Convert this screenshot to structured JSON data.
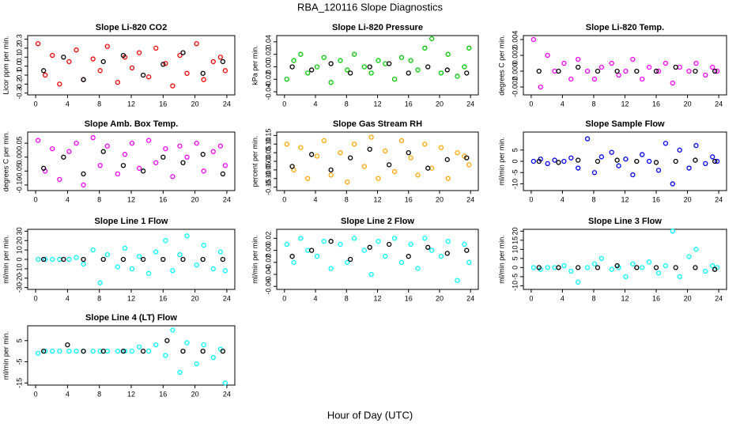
{
  "title": "RBA_120116  Slope Diagnostics",
  "xlabel": "Hour of Day (UTC)",
  "chart_data": [
    {
      "type": "scatter",
      "title": "Slope Li-820 CO2",
      "ylabel": "Licor ppm per min.",
      "xlim": [
        -1,
        25
      ],
      "xticks": [
        0,
        4,
        8,
        12,
        16,
        20,
        24
      ],
      "ylim": [
        -0.32,
        0.34
      ],
      "yticks": [
        -0.3,
        -0.2,
        -0.1,
        {
          "value": 0,
          "label": "0.0"
        },
        0.1,
        0.2,
        0.3
      ],
      "series": [
        {
          "color": "#ff0000",
          "x": [
            0.3,
            1.2,
            2.1,
            3.0,
            4.2,
            5.1,
            6.0,
            7.2,
            8.1,
            9.0,
            10.3,
            11.2,
            12.1,
            13.0,
            14.2,
            15.1,
            16.3,
            17.2,
            18.1,
            19.0,
            20.2,
            21.1,
            22.3,
            23.2,
            23.8
          ],
          "values": [
            0.25,
            -0.1,
            0.12,
            -0.2,
            0.05,
            0.18,
            -0.15,
            0.08,
            -0.05,
            0.22,
            -0.18,
            0.1,
            -0.02,
            0.15,
            -0.12,
            0.2,
            0.03,
            -0.22,
            0.12,
            -0.08,
            0.25,
            -0.15,
            0.05,
            0.1,
            -0.05
          ]
        },
        {
          "color": "#000000",
          "x": [
            1,
            3.5,
            6,
            8.5,
            11,
            13.5,
            16,
            18.5,
            21,
            23.5
          ],
          "values": [
            -0.05,
            0.1,
            -0.15,
            0.05,
            0.12,
            -0.1,
            0.02,
            0.15,
            -0.08,
            0.05
          ]
        }
      ]
    },
    {
      "type": "scatter",
      "title": "Slope Li-820 Pressure",
      "ylabel": "kPa per min.",
      "xlim": [
        -1,
        25
      ],
      "xticks": [
        0,
        4,
        8,
        12,
        16,
        20,
        24
      ],
      "ylim": [
        -0.045,
        0.05
      ],
      "yticks": [
        -0.04,
        -0.02,
        {
          "value": 0,
          "label": "0.00"
        },
        0.02,
        0.04
      ],
      "series": [
        {
          "color": "#00cc00",
          "x": [
            0.3,
            1.2,
            2.1,
            3.0,
            4.2,
            5.1,
            6.0,
            7.2,
            8.1,
            9.0,
            10.3,
            11.2,
            12.1,
            13.0,
            14.2,
            15.1,
            16.3,
            17.2,
            18.1,
            19.0,
            20.2,
            21.1,
            22.3,
            23.2,
            23.8
          ],
          "values": [
            -0.02,
            0.01,
            0.02,
            -0.01,
            0.0,
            0.015,
            -0.025,
            0.01,
            -0.005,
            0.02,
            0.0,
            -0.01,
            0.01,
            0.005,
            -0.02,
            0.015,
            0.01,
            -0.005,
            0.03,
            0.045,
            -0.01,
            0.02,
            -0.015,
            0.0,
            0.03
          ]
        },
        {
          "color": "#000000",
          "x": [
            1,
            3.5,
            6,
            8.5,
            11,
            13.5,
            16,
            18.5,
            21,
            23.5
          ],
          "values": [
            0.0,
            -0.005,
            0.005,
            -0.01,
            0.0,
            0.005,
            -0.01,
            0.0,
            -0.005,
            -0.01
          ]
        }
      ]
    },
    {
      "type": "scatter",
      "title": "Slope Li-820 Temp.",
      "ylabel": "degrees C per min.",
      "xlim": [
        -1,
        25
      ],
      "xticks": [
        0,
        4,
        8,
        12,
        16,
        20,
        24
      ],
      "ylim": [
        -0.003,
        0.0045
      ],
      "yticks": [
        -0.002,
        {
          "value": 0,
          "label": "0.000"
        },
        0.002,
        0.004
      ],
      "series": [
        {
          "color": "#ff00ff",
          "x": [
            0.3,
            1.2,
            2.1,
            3.0,
            4.2,
            5.1,
            6.0,
            7.2,
            8.1,
            9.0,
            10.3,
            11.2,
            12.1,
            13.0,
            14.2,
            15.1,
            16.3,
            17.2,
            18.1,
            19.0,
            20.2,
            21.1,
            22.3,
            23.2,
            23.8
          ],
          "values": [
            0.004,
            -0.002,
            0.002,
            0.0,
            0.001,
            -0.001,
            0.0015,
            0.0,
            -0.001,
            0.0005,
            0.001,
            -0.0005,
            0.0,
            0.0015,
            -0.001,
            0.0005,
            0.0,
            0.001,
            -0.0015,
            0.0005,
            0.0,
            0.001,
            -0.0005,
            0.0005,
            0.0
          ]
        },
        {
          "color": "#000000",
          "x": [
            1,
            3.5,
            6,
            8.5,
            11,
            13.5,
            16,
            18.5,
            21,
            23.5
          ],
          "values": [
            0,
            0,
            0.0005,
            0,
            0,
            0,
            0,
            0.0005,
            0,
            0
          ]
        }
      ]
    },
    {
      "type": "scatter",
      "title": "Slope Amb. Box Temp.",
      "ylabel": "degrees C per min.",
      "xlim": [
        -1,
        25
      ],
      "xticks": [
        0,
        4,
        8,
        12,
        16,
        20,
        24
      ],
      "ylim": [
        -0.12,
        0.09
      ],
      "yticks": [
        {
          "value": -0.1,
          "label": "-0.10"
        },
        -0.05,
        {
          "value": 0,
          "label": "0.00"
        },
        0.05
      ],
      "series": [
        {
          "color": "#ff00ff",
          "x": [
            0.3,
            1.2,
            2.1,
            3.0,
            4.2,
            5.1,
            6.0,
            7.2,
            8.1,
            9.0,
            10.3,
            11.2,
            12.1,
            13.0,
            14.2,
            15.1,
            16.3,
            17.2,
            18.1,
            19.0,
            20.2,
            21.1,
            22.3,
            23.2,
            23.8
          ],
          "values": [
            0.06,
            -0.05,
            0.03,
            -0.08,
            0.02,
            0.05,
            -0.1,
            0.07,
            -0.03,
            0.04,
            -0.06,
            0.01,
            0.05,
            -0.04,
            0.06,
            -0.02,
            0.03,
            -0.07,
            0.04,
            0.0,
            0.05,
            -0.05,
            0.02,
            0.04,
            -0.03
          ]
        },
        {
          "color": "#000000",
          "x": [
            1,
            3.5,
            6,
            8.5,
            11,
            13.5,
            16,
            18.5,
            21,
            23.5
          ],
          "values": [
            -0.04,
            0.0,
            -0.06,
            0.02,
            -0.03,
            -0.05,
            0.0,
            -0.02,
            0.01,
            -0.06
          ]
        }
      ]
    },
    {
      "type": "scatter",
      "title": "Slope Gas Stream RH",
      "ylabel": "percent per min.",
      "xlim": [
        -1,
        25
      ],
      "xticks": [
        0,
        4,
        8,
        12,
        16,
        20,
        24
      ],
      "ylim": [
        -0.17,
        0.17
      ],
      "yticks": [
        -0.15,
        {
          "value": -0.1,
          "label": "-0.10"
        },
        -0.05,
        {
          "value": 0,
          "label": "0.00"
        },
        0.05,
        {
          "value": 0.1,
          "label": "0.10"
        },
        0.15
      ],
      "series": [
        {
          "color": "#ffa500",
          "x": [
            0.3,
            1.2,
            2.1,
            3.0,
            4.2,
            5.1,
            6.0,
            7.2,
            8.1,
            9.0,
            10.3,
            11.2,
            12.1,
            13.0,
            14.2,
            15.1,
            16.3,
            17.2,
            18.1,
            19.0,
            20.2,
            21.1,
            22.3,
            23.2,
            23.8
          ],
          "values": [
            0.1,
            -0.05,
            0.08,
            -0.1,
            0.03,
            0.12,
            -0.08,
            0.05,
            -0.12,
            0.1,
            -0.03,
            0.14,
            -0.1,
            0.06,
            -0.06,
            0.12,
            0.02,
            -0.08,
            0.1,
            -0.04,
            0.08,
            -0.1,
            0.05,
            0.03,
            -0.02
          ]
        },
        {
          "color": "#000000",
          "x": [
            1,
            3.5,
            6,
            8.5,
            11,
            13.5,
            16,
            18.5,
            21,
            23.5
          ],
          "values": [
            -0.03,
            0.04,
            -0.05,
            0.02,
            0.07,
            -0.02,
            0.05,
            -0.04,
            0.01,
            0.02
          ]
        }
      ]
    },
    {
      "type": "scatter",
      "title": "Slope Sample Flow",
      "ylabel": "ml/min per min.",
      "xlim": [
        -1,
        25
      ],
      "xticks": [
        0,
        4,
        8,
        12,
        16,
        20,
        24
      ],
      "ylim": [
        -13,
        13
      ],
      "yticks": [
        -10,
        -5,
        0,
        5
      ],
      "series": [
        {
          "color": "#0000ff",
          "x": [
            0.3,
            1.2,
            2.1,
            3.0,
            4.2,
            5.1,
            6.0,
            7.2,
            8.1,
            9.0,
            10.3,
            11.2,
            12.1,
            13.0,
            14.2,
            15.1,
            16.3,
            17.2,
            18.1,
            19.0,
            20.2,
            21.1,
            22.3,
            23.2,
            23.8
          ],
          "values": [
            0,
            1,
            -1,
            0.5,
            0,
            1.5,
            -3,
            10,
            -5,
            2,
            4,
            -2,
            1,
            -6,
            3,
            0,
            -4,
            8,
            -10,
            5,
            -3,
            7,
            -1,
            2,
            0
          ]
        },
        {
          "color": "#000000",
          "x": [
            1,
            3.5,
            6,
            8.5,
            11,
            13.5,
            16,
            18.5,
            21,
            23.5
          ],
          "values": [
            0,
            -0.5,
            0.5,
            0,
            0.5,
            0,
            -0.5,
            0,
            0.5,
            0
          ]
        }
      ]
    },
    {
      "type": "scatter",
      "title": "Slope Line 1 Flow",
      "ylabel": "ml/min per min.",
      "xlim": [
        -1,
        25
      ],
      "xticks": [
        0,
        4,
        8,
        12,
        16,
        20,
        24
      ],
      "ylim": [
        -32,
        32
      ],
      "yticks": [
        -30,
        -20,
        -10,
        0,
        10,
        20,
        30
      ],
      "series": [
        {
          "color": "#00ffff",
          "x": [
            0.3,
            1.2,
            2.1,
            3.0,
            4.2,
            5.1,
            6.0,
            7.2,
            8.1,
            9.0,
            10.3,
            11.2,
            12.1,
            13.0,
            14.2,
            15.1,
            16.3,
            17.2,
            18.1,
            19.0,
            20.2,
            21.1,
            22.3,
            23.2,
            23.8
          ],
          "values": [
            0,
            0,
            0,
            0,
            0,
            2,
            -5,
            10,
            -25,
            5,
            -8,
            12,
            -10,
            3,
            -15,
            8,
            20,
            -12,
            5,
            25,
            -6,
            15,
            -10,
            8,
            -12
          ]
        },
        {
          "color": "#000000",
          "x": [
            1,
            3.5,
            6,
            8.5,
            11,
            13.5,
            16,
            18.5,
            21,
            23.5
          ],
          "values": [
            0,
            0,
            0,
            0,
            0,
            0,
            0,
            0,
            0,
            0
          ]
        }
      ]
    },
    {
      "type": "scatter",
      "title": "Slope Line 2 Flow",
      "ylabel": "ml/min per min.",
      "xlim": [
        -1,
        25
      ],
      "xticks": [
        0,
        4,
        8,
        12,
        16,
        20,
        24
      ],
      "ylim": [
        -0.065,
        0.035
      ],
      "yticks": [
        -0.06,
        -0.04,
        -0.02,
        {
          "value": 0,
          "label": "0.00"
        },
        0.02
      ],
      "series": [
        {
          "color": "#00ffff",
          "x": [
            0.3,
            1.2,
            2.1,
            3.0,
            4.2,
            5.1,
            6.0,
            7.2,
            8.1,
            9.0,
            10.3,
            11.2,
            12.1,
            13.0,
            14.2,
            15.1,
            16.3,
            17.2,
            18.1,
            19.0,
            20.2,
            21.1,
            22.3,
            23.2,
            23.8
          ],
          "values": [
            0.01,
            -0.02,
            0.02,
            0.0,
            -0.01,
            0.015,
            -0.03,
            0.01,
            -0.02,
            0.02,
            0.0,
            -0.04,
            0.015,
            -0.01,
            0.02,
            -0.02,
            0.01,
            -0.03,
            0.02,
            0.0,
            -0.01,
            0.015,
            -0.05,
            0.01,
            -0.02
          ]
        },
        {
          "color": "#000000",
          "x": [
            1,
            3.5,
            6,
            8.5,
            11,
            13.5,
            16,
            18.5,
            21,
            23.5
          ],
          "values": [
            -0.01,
            0.0,
            0.015,
            -0.015,
            0.005,
            0.01,
            -0.01,
            0.005,
            -0.005,
            0.0
          ]
        }
      ]
    },
    {
      "type": "scatter",
      "title": "Slope Line 3 Flow",
      "ylabel": "ml/min per min.",
      "xlim": [
        -1,
        25
      ],
      "xticks": [
        0,
        4,
        8,
        12,
        16,
        20,
        24
      ],
      "ylim": [
        -12,
        21
      ],
      "yticks": [
        -10,
        -5,
        0,
        5,
        10,
        15,
        20
      ],
      "series": [
        {
          "color": "#00ffff",
          "x": [
            0.3,
            1.2,
            2.1,
            3.0,
            4.2,
            5.1,
            6.0,
            7.2,
            8.1,
            9.0,
            10.3,
            11.2,
            12.1,
            13.0,
            14.2,
            15.1,
            16.3,
            17.2,
            18.1,
            19.0,
            20.2,
            21.1,
            22.3,
            23.2,
            23.8
          ],
          "values": [
            0,
            -1,
            0,
            0,
            1,
            -2,
            -8,
            0,
            2,
            5,
            -1,
            0,
            -5,
            2,
            0,
            3,
            -3,
            1,
            20,
            -5,
            6,
            10,
            -2,
            1,
            0
          ]
        },
        {
          "color": "#000000",
          "x": [
            1,
            3.5,
            6,
            8.5,
            11,
            13.5,
            16,
            18.5,
            21,
            23.5
          ],
          "values": [
            0,
            0,
            0,
            0,
            1,
            0,
            0,
            0,
            0,
            -1
          ]
        }
      ]
    },
    {
      "type": "scatter",
      "title": "Slope Line 4 (LT) Flow",
      "ylabel": "ml/min per min.",
      "xlim": [
        -1,
        25
      ],
      "xticks": [
        0,
        4,
        8,
        12,
        16,
        20,
        24
      ],
      "ylim": [
        -16,
        12
      ],
      "yticks": [
        -15,
        -5,
        5
      ],
      "series": [
        {
          "color": "#00ffff",
          "x": [
            0.3,
            1.2,
            2.1,
            3.0,
            4.2,
            5.1,
            6.0,
            7.2,
            8.1,
            9.0,
            10.3,
            11.2,
            12.1,
            13.0,
            14.2,
            15.1,
            16.3,
            17.2,
            18.1,
            19.0,
            20.2,
            21.1,
            22.3,
            23.2,
            23.8
          ],
          "values": [
            -1,
            0,
            0,
            0,
            0,
            0,
            0,
            0,
            0,
            0,
            0,
            0,
            0,
            2,
            0,
            3,
            -2,
            10,
            -10,
            4,
            -6,
            3,
            -3,
            1,
            -15
          ]
        },
        {
          "color": "#000000",
          "x": [
            1,
            4,
            6,
            8.5,
            11,
            13.5,
            16.5,
            18.5,
            21,
            23.5
          ],
          "values": [
            0,
            3,
            0,
            0,
            0,
            0,
            5,
            0,
            0,
            0
          ]
        }
      ]
    }
  ]
}
